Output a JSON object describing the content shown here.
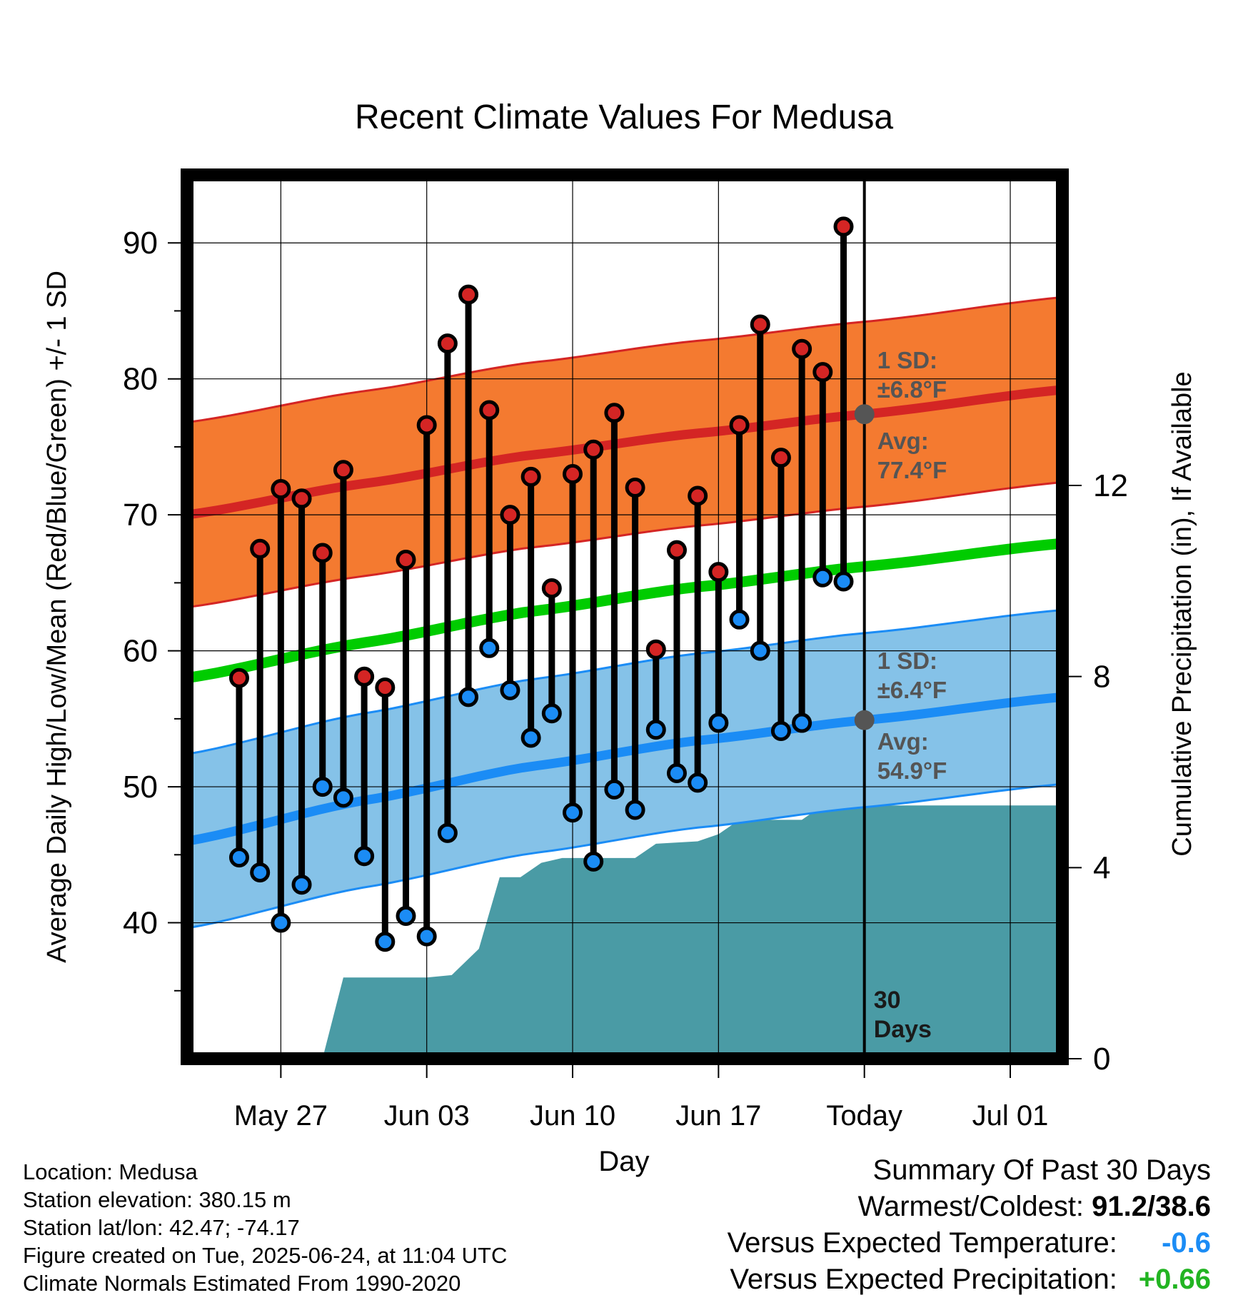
{
  "chart_data": {
    "type": "line",
    "title": "Recent Climate Values For Medusa",
    "xlabel": "Day",
    "ylabel": "Average Daily High/Low/Mean (Red/Blue/Green) +/- 1 SD",
    "y2label": "Cumulative Precipitation (in), If Available",
    "x_range_days": [
      -32.5,
      9.5
    ],
    "ylim": [
      30,
      95
    ],
    "y2lim": [
      0,
      18.5
    ],
    "x_ticks": [
      {
        "day": -28,
        "label": "May 27"
      },
      {
        "day": -21,
        "label": "Jun 03"
      },
      {
        "day": -14,
        "label": "Jun 10"
      },
      {
        "day": -7,
        "label": "Jun 17"
      },
      {
        "day": 0,
        "label": "Today"
      },
      {
        "day": 7,
        "label": "Jul 01"
      }
    ],
    "y_ticks": [
      40,
      50,
      60,
      70,
      80,
      90
    ],
    "y2_ticks": [
      0,
      4,
      8,
      12
    ],
    "grid": true,
    "days": [
      -30,
      -29,
      -28,
      -27,
      -26,
      -25,
      -24,
      -23,
      -22,
      -21,
      -20,
      -19,
      -18,
      -17,
      -16,
      -15,
      -14,
      -13,
      -12,
      -11,
      -10,
      -9,
      -8,
      -7,
      -6,
      -5,
      -4,
      -3,
      -2,
      -1
    ],
    "daily_high": [
      58.0,
      67.5,
      71.9,
      71.2,
      67.2,
      73.3,
      58.1,
      57.3,
      66.7,
      76.6,
      82.6,
      86.2,
      77.7,
      70.0,
      72.8,
      64.6,
      73.0,
      74.8,
      77.5,
      72.0,
      60.1,
      67.4,
      71.4,
      65.8,
      76.6,
      84.0,
      74.2,
      82.2,
      80.5,
      91.2
    ],
    "daily_low": [
      44.8,
      43.7,
      40.0,
      42.8,
      50.0,
      49.2,
      44.9,
      38.6,
      40.5,
      39.0,
      46.6,
      56.6,
      60.2,
      57.1,
      53.6,
      55.4,
      48.1,
      44.5,
      49.8,
      48.3,
      54.2,
      51.0,
      50.3,
      54.7,
      62.3,
      60.0,
      54.1,
      54.7,
      65.4,
      65.1
    ],
    "normal_high": {
      "days": [
        -32.5,
        -24,
        -16,
        -8,
        0,
        9.5
      ],
      "values": [
        70.0,
        72.3,
        74.4,
        76.0,
        77.4,
        79.2
      ]
    },
    "normal_high_sd": 6.8,
    "normal_low": {
      "days": [
        -32.5,
        -24,
        -16,
        -8,
        0,
        9.5
      ],
      "values": [
        46.0,
        49.0,
        51.5,
        53.4,
        54.9,
        56.6
      ]
    },
    "normal_low_sd": 6.4,
    "normal_mean": {
      "days": [
        -32.5,
        -24,
        -16,
        -8,
        0,
        9.5
      ],
      "values": [
        58.0,
        60.6,
        62.9,
        64.7,
        66.2,
        67.9
      ]
    },
    "precip_cumulative": {
      "days": [
        -26,
        -25,
        -21,
        -19.8,
        -18.5,
        -17.5,
        -16.5,
        -15.5,
        -14.5,
        -14,
        -12,
        -11,
        -10,
        -8,
        -7,
        -6,
        -5,
        -3,
        -2,
        9.5
      ],
      "values": [
        0,
        1.7,
        1.7,
        1.75,
        2.3,
        3.8,
        3.8,
        4.1,
        4.2,
        4.2,
        4.2,
        4.2,
        4.5,
        4.55,
        4.7,
        5.0,
        5.0,
        5.0,
        5.3,
        5.3
      ]
    },
    "annotations": {
      "high_sd_title": "1 SD:",
      "high_sd_value": "±6.8°F",
      "high_avg_title": "Avg:",
      "high_avg_value": "77.4°F",
      "low_sd_title": "1 SD:",
      "low_sd_value": "±6.4°F",
      "low_avg_title": "Avg:",
      "low_avg_value": "54.9°F",
      "window_line1": "30",
      "window_line2": "Days"
    },
    "colors": {
      "high_band": "#f47a30",
      "high_line": "#d42524",
      "low_band": "#85c2e8",
      "low_line": "#1b8cf5",
      "mean_line": "#00cc00",
      "precip_fill": "#4a9ba5",
      "high_dot": "#d42524",
      "low_dot": "#1b8cf5",
      "annotation_text": "#555555"
    }
  },
  "footer": {
    "location": "Location: Medusa",
    "elevation": "Station elevation: 380.15 m",
    "latlon": "Station lat/lon: 42.47; -74.17",
    "created": "Figure created on Tue, 2025-06-24, at 11:04 UTC",
    "normals": "Climate Normals Estimated From 1990-2020"
  },
  "summary": {
    "title": "Summary Of Past 30 Days",
    "warm_cold_label": "Warmest/Coldest:",
    "warm_cold_value": "91.2/38.6",
    "temp_label": "Versus Expected Temperature:",
    "temp_value": "-0.6",
    "temp_color": "#1b8cf5",
    "precip_label": "Versus Expected Precipitation:",
    "precip_value": "+0.66",
    "precip_color": "#22b422"
  }
}
